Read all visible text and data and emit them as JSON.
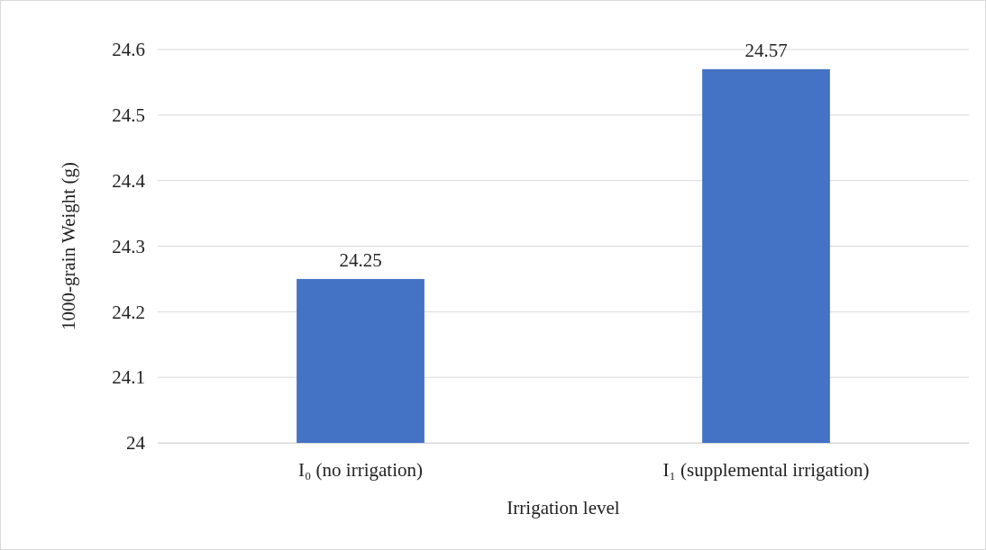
{
  "chart_data": {
    "type": "bar",
    "xlabel": "Irrigation level",
    "ylabel": "1000-grain Weight (g)",
    "categories": [
      "I₀ (no irrigation)",
      "I₁ (supplemental irrigation)"
    ],
    "values": [
      24.25,
      24.57
    ],
    "color": "#4472c4",
    "ylim": [
      24,
      24.6
    ],
    "yticks": [
      24,
      24.1,
      24.2,
      24.3,
      24.4,
      24.5,
      24.6
    ],
    "grid": "y",
    "data_labels": true
  }
}
